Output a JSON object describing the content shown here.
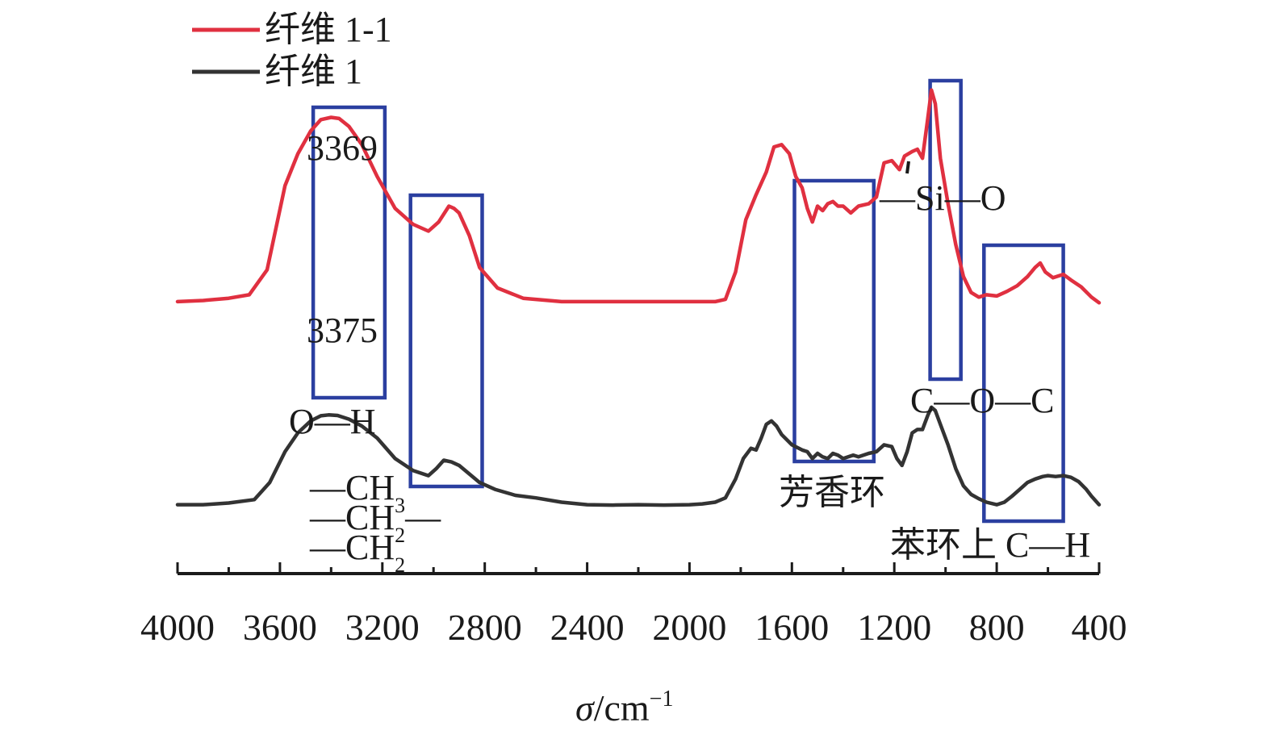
{
  "chart_data": {
    "type": "line",
    "xlabel_symbol": "σ",
    "xlabel_unit": "/cm",
    "xlabel_sup": "−1",
    "xlim": [
      4000,
      400
    ],
    "x_ticks": [
      4000,
      3600,
      3200,
      2800,
      2400,
      2000,
      1600,
      1200,
      800,
      400
    ],
    "x_tick_labels": [
      "4000",
      "3600",
      "3200",
      "2800",
      "2400",
      "2000",
      "1600",
      "1200",
      "800",
      "400"
    ],
    "minor_tick_step": 200,
    "legend_position": "top-left",
    "series": [
      {
        "name": "纤维 1-1",
        "color": "#e03040",
        "points": [
          [
            4000,
            0.05
          ],
          [
            3900,
            0.055
          ],
          [
            3800,
            0.065
          ],
          [
            3720,
            0.08
          ],
          [
            3650,
            0.19
          ],
          [
            3580,
            0.56
          ],
          [
            3530,
            0.7
          ],
          [
            3480,
            0.8
          ],
          [
            3440,
            0.85
          ],
          [
            3400,
            0.86
          ],
          [
            3369,
            0.855
          ],
          [
            3330,
            0.82
          ],
          [
            3280,
            0.74
          ],
          [
            3220,
            0.6
          ],
          [
            3150,
            0.46
          ],
          [
            3080,
            0.39
          ],
          [
            3020,
            0.36
          ],
          [
            2980,
            0.4
          ],
          [
            2940,
            0.47
          ],
          [
            2920,
            0.46
          ],
          [
            2900,
            0.44
          ],
          [
            2860,
            0.34
          ],
          [
            2820,
            0.2
          ],
          [
            2750,
            0.11
          ],
          [
            2650,
            0.065
          ],
          [
            2500,
            0.05
          ],
          [
            2300,
            0.05
          ],
          [
            2100,
            0.05
          ],
          [
            1900,
            0.05
          ],
          [
            1860,
            0.06
          ],
          [
            1820,
            0.18
          ],
          [
            1780,
            0.41
          ],
          [
            1740,
            0.52
          ],
          [
            1700,
            0.62
          ],
          [
            1670,
            0.73
          ],
          [
            1640,
            0.74
          ],
          [
            1610,
            0.7
          ],
          [
            1585,
            0.6
          ],
          [
            1560,
            0.55
          ],
          [
            1540,
            0.46
          ],
          [
            1520,
            0.4
          ],
          [
            1500,
            0.47
          ],
          [
            1480,
            0.45
          ],
          [
            1460,
            0.48
          ],
          [
            1440,
            0.49
          ],
          [
            1420,
            0.47
          ],
          [
            1400,
            0.47
          ],
          [
            1370,
            0.44
          ],
          [
            1340,
            0.47
          ],
          [
            1300,
            0.48
          ],
          [
            1270,
            0.51
          ],
          [
            1240,
            0.66
          ],
          [
            1210,
            0.67
          ],
          [
            1180,
            0.63
          ],
          [
            1160,
            0.69
          ],
          [
            1130,
            0.71
          ],
          [
            1110,
            0.72
          ],
          [
            1090,
            0.68
          ],
          [
            1070,
            0.85
          ],
          [
            1055,
            0.98
          ],
          [
            1040,
            0.92
          ],
          [
            1020,
            0.68
          ],
          [
            990,
            0.48
          ],
          [
            960,
            0.3
          ],
          [
            930,
            0.16
          ],
          [
            900,
            0.09
          ],
          [
            870,
            0.07
          ],
          [
            840,
            0.08
          ],
          [
            800,
            0.075
          ],
          [
            760,
            0.095
          ],
          [
            720,
            0.12
          ],
          [
            680,
            0.16
          ],
          [
            650,
            0.2
          ],
          [
            630,
            0.22
          ],
          [
            610,
            0.18
          ],
          [
            580,
            0.155
          ],
          [
            540,
            0.17
          ],
          [
            510,
            0.145
          ],
          [
            470,
            0.115
          ],
          [
            430,
            0.07
          ],
          [
            400,
            0.045
          ]
        ]
      },
      {
        "name": "纤维 1",
        "color": "#333333",
        "points": [
          [
            4000,
            0.03
          ],
          [
            3900,
            0.03
          ],
          [
            3800,
            0.04
          ],
          [
            3700,
            0.06
          ],
          [
            3640,
            0.16
          ],
          [
            3580,
            0.34
          ],
          [
            3530,
            0.45
          ],
          [
            3480,
            0.52
          ],
          [
            3440,
            0.55
          ],
          [
            3410,
            0.555
          ],
          [
            3375,
            0.552
          ],
          [
            3330,
            0.53
          ],
          [
            3280,
            0.49
          ],
          [
            3220,
            0.42
          ],
          [
            3150,
            0.3
          ],
          [
            3080,
            0.23
          ],
          [
            3020,
            0.2
          ],
          [
            2990,
            0.24
          ],
          [
            2960,
            0.29
          ],
          [
            2930,
            0.28
          ],
          [
            2900,
            0.26
          ],
          [
            2860,
            0.21
          ],
          [
            2820,
            0.16
          ],
          [
            2760,
            0.12
          ],
          [
            2680,
            0.085
          ],
          [
            2600,
            0.07
          ],
          [
            2500,
            0.045
          ],
          [
            2400,
            0.03
          ],
          [
            2300,
            0.028
          ],
          [
            2200,
            0.03
          ],
          [
            2100,
            0.028
          ],
          [
            2000,
            0.03
          ],
          [
            1950,
            0.035
          ],
          [
            1900,
            0.045
          ],
          [
            1860,
            0.07
          ],
          [
            1820,
            0.18
          ],
          [
            1790,
            0.3
          ],
          [
            1760,
            0.36
          ],
          [
            1740,
            0.35
          ],
          [
            1720,
            0.42
          ],
          [
            1700,
            0.5
          ],
          [
            1680,
            0.52
          ],
          [
            1660,
            0.49
          ],
          [
            1640,
            0.44
          ],
          [
            1600,
            0.38
          ],
          [
            1560,
            0.35
          ],
          [
            1540,
            0.34
          ],
          [
            1520,
            0.3
          ],
          [
            1500,
            0.33
          ],
          [
            1480,
            0.31
          ],
          [
            1460,
            0.3
          ],
          [
            1440,
            0.33
          ],
          [
            1420,
            0.32
          ],
          [
            1400,
            0.3
          ],
          [
            1380,
            0.31
          ],
          [
            1360,
            0.32
          ],
          [
            1340,
            0.31
          ],
          [
            1300,
            0.33
          ],
          [
            1270,
            0.34
          ],
          [
            1240,
            0.38
          ],
          [
            1210,
            0.37
          ],
          [
            1190,
            0.3
          ],
          [
            1170,
            0.26
          ],
          [
            1150,
            0.34
          ],
          [
            1130,
            0.45
          ],
          [
            1110,
            0.47
          ],
          [
            1090,
            0.47
          ],
          [
            1070,
            0.55
          ],
          [
            1055,
            0.6
          ],
          [
            1040,
            0.58
          ],
          [
            1020,
            0.5
          ],
          [
            990,
            0.38
          ],
          [
            960,
            0.24
          ],
          [
            930,
            0.14
          ],
          [
            900,
            0.09
          ],
          [
            870,
            0.065
          ],
          [
            840,
            0.045
          ],
          [
            800,
            0.03
          ],
          [
            770,
            0.045
          ],
          [
            740,
            0.08
          ],
          [
            710,
            0.12
          ],
          [
            680,
            0.16
          ],
          [
            650,
            0.18
          ],
          [
            620,
            0.195
          ],
          [
            600,
            0.2
          ],
          [
            570,
            0.195
          ],
          [
            540,
            0.2
          ],
          [
            510,
            0.19
          ],
          [
            480,
            0.165
          ],
          [
            450,
            0.12
          ],
          [
            430,
            0.08
          ],
          [
            400,
            0.03
          ]
        ]
      }
    ],
    "annotations": [
      {
        "text": "3369",
        "x": 3370,
        "series": 0
      },
      {
        "text": "3375",
        "x": 3370,
        "series": 1
      },
      {
        "text": "O—H"
      },
      {
        "text": "—CH",
        "sub": "3"
      },
      {
        "text": "—CH",
        "sub": "2",
        "suffix": "—"
      },
      {
        "text": "—CH",
        "sub": "2"
      },
      {
        "text": "芳香环"
      },
      {
        "text": "—Si—O"
      },
      {
        "text": "C—O—C"
      },
      {
        "text": "苯环上 C—H"
      }
    ],
    "highlight_boxes": [
      {
        "x_from": 3470,
        "x_to": 3190,
        "color": "#2b3fa0"
      },
      {
        "x_from": 3090,
        "x_to": 2810,
        "color": "#2b3fa0"
      },
      {
        "x_from": 1590,
        "x_to": 1280,
        "color": "#2b3fa0"
      },
      {
        "x_from": 1060,
        "x_to": 940,
        "color": "#2b3fa0"
      },
      {
        "x_from": 850,
        "x_to": 540,
        "color": "#2b3fa0"
      }
    ]
  }
}
